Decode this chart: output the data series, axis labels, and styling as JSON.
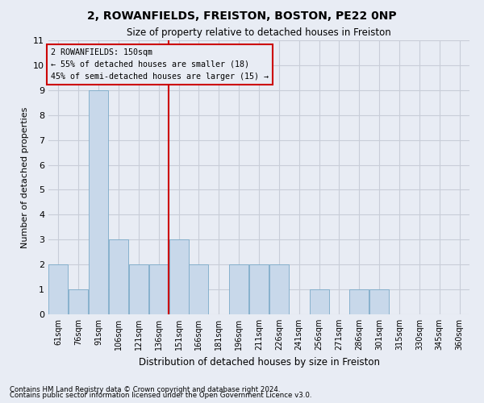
{
  "title": "2, ROWANFIELDS, FREISTON, BOSTON, PE22 0NP",
  "subtitle": "Size of property relative to detached houses in Freiston",
  "xlabel": "Distribution of detached houses by size in Freiston",
  "ylabel": "Number of detached properties",
  "footnote1": "Contains HM Land Registry data © Crown copyright and database right 2024.",
  "footnote2": "Contains public sector information licensed under the Open Government Licence v3.0.",
  "annotation_line1": "2 ROWANFIELDS: 150sqm",
  "annotation_line2": "← 55% of detached houses are smaller (18)",
  "annotation_line3": "45% of semi-detached houses are larger (15) →",
  "bar_color": "#c8d8ea",
  "bar_edge_color": "#7aaac8",
  "redline_color": "#cc0000",
  "redbox_color": "#cc0000",
  "categories": [
    "61sqm",
    "76sqm",
    "91sqm",
    "106sqm",
    "121sqm",
    "136sqm",
    "151sqm",
    "166sqm",
    "181sqm",
    "196sqm",
    "211sqm",
    "226sqm",
    "241sqm",
    "256sqm",
    "271sqm",
    "286sqm",
    "301sqm",
    "315sqm",
    "330sqm",
    "345sqm",
    "360sqm"
  ],
  "values": [
    2,
    1,
    9,
    3,
    2,
    2,
    3,
    2,
    0,
    2,
    2,
    2,
    0,
    1,
    0,
    1,
    1,
    0,
    0,
    0,
    0
  ],
  "redline_x": 5.5,
  "ylim": [
    0,
    11
  ],
  "yticks": [
    0,
    1,
    2,
    3,
    4,
    5,
    6,
    7,
    8,
    9,
    10,
    11
  ],
  "grid_color": "#c8cdd8",
  "bg_color": "#e8ecf4"
}
